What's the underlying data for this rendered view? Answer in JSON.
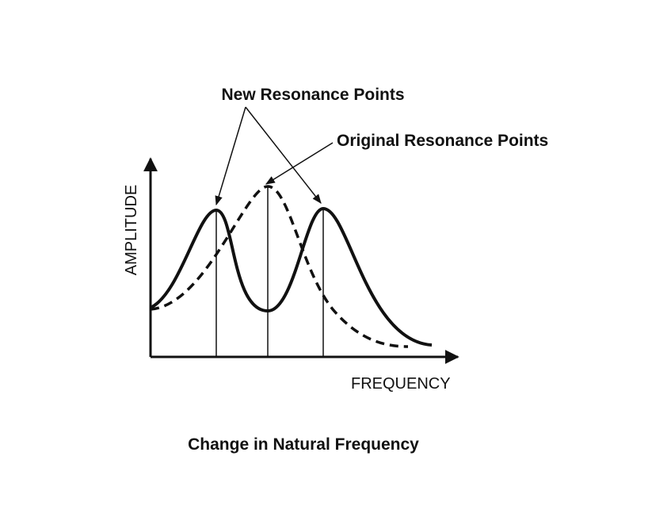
{
  "annotations": {
    "new": "New Resonance Points",
    "original": "Original Resonance Points"
  },
  "axes": {
    "y_label": "AMPLITUDE",
    "x_label": "FREQUENCY"
  },
  "caption": "Change in Natural Frequency"
}
